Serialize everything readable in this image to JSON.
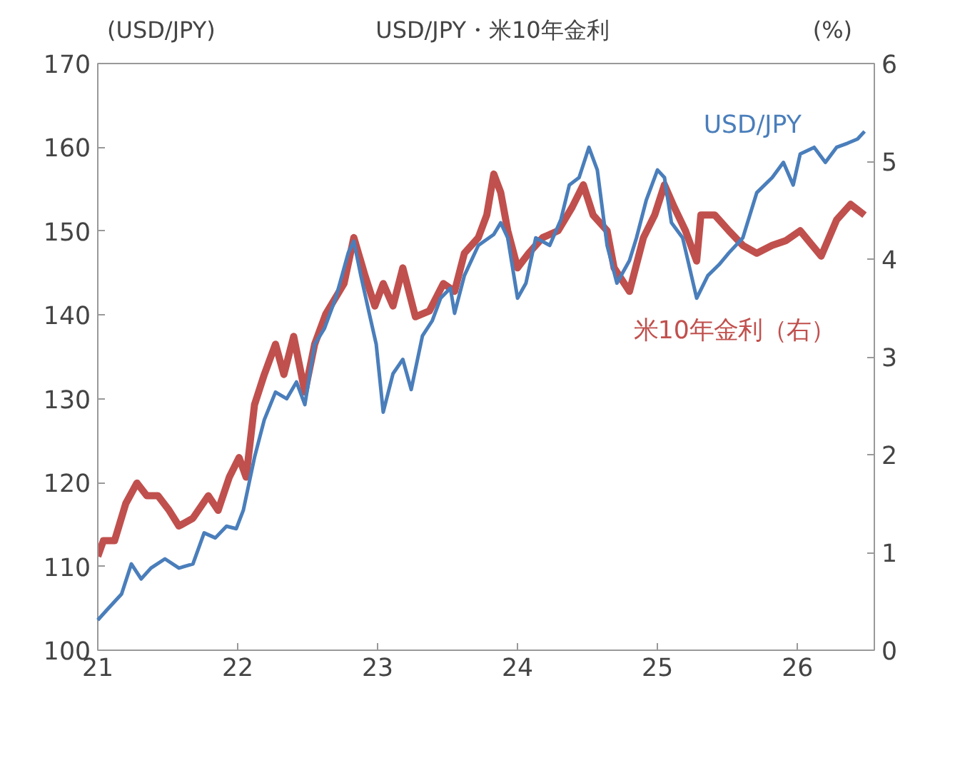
{
  "chart_data": {
    "type": "line",
    "title": "USD/JPY・米10年金利",
    "ylabel": "(USD/JPY)",
    "y2label": "(%)",
    "xlim": [
      21,
      26.55
    ],
    "xticks": [
      21,
      22,
      23,
      24,
      25,
      26
    ],
    "ylim": [
      100,
      170
    ],
    "yticks": [
      100,
      110,
      120,
      130,
      140,
      150,
      160,
      170
    ],
    "y2lim": [
      0,
      6
    ],
    "y2ticks": [
      0,
      1,
      2,
      3,
      4,
      5,
      6
    ],
    "grid": false,
    "legend": false,
    "marker": "none",
    "line_style": "solid",
    "series": [
      {
        "name": "USD/JPY",
        "color": "#4a7ebb",
        "x": [
          21.0,
          21.07,
          21.17,
          21.24,
          21.31,
          21.38,
          21.48,
          21.58,
          21.68,
          21.76,
          21.84,
          21.92,
          21.99,
          22.04,
          22.12,
          22.19,
          22.27,
          22.35,
          22.42,
          22.48,
          22.55,
          22.62,
          22.7,
          22.79,
          22.83,
          22.88,
          22.94,
          22.99,
          23.04,
          23.11,
          23.18,
          23.24,
          23.32,
          23.39,
          23.45,
          23.52,
          23.55,
          23.62,
          23.72,
          23.83,
          23.88,
          23.93,
          24.0,
          24.06,
          24.13,
          24.23,
          24.31,
          24.37,
          24.44,
          24.51,
          24.57,
          24.64,
          24.71,
          24.8,
          24.85,
          24.92,
          25.0,
          25.05,
          25.1,
          25.18,
          25.28,
          25.36,
          25.44,
          25.51,
          25.61,
          25.71,
          25.82,
          25.9,
          25.97,
          26.02,
          26.12,
          26.2,
          26.28,
          26.36,
          26.43,
          26.48
        ],
        "values": [
          103.6,
          104.9,
          106.7,
          110.3,
          108.5,
          109.8,
          110.9,
          109.8,
          110.3,
          114,
          113.4,
          114.8,
          114.5,
          116.7,
          123,
          127.5,
          130.8,
          130,
          132,
          129.3,
          136.5,
          138.4,
          142,
          147.4,
          148.8,
          144.7,
          140.2,
          136.5,
          128.4,
          133,
          134.7,
          131.1,
          137.5,
          139.3,
          142,
          143.2,
          140.2,
          144.7,
          148.3,
          149.6,
          151,
          149.2,
          142,
          143.8,
          149.2,
          148.3,
          151.4,
          155.5,
          156.4,
          160,
          157.3,
          148.3,
          143.8,
          146.5,
          149.2,
          153.7,
          157.3,
          156.4,
          151,
          149.2,
          142,
          144.7,
          146,
          147.4,
          149.2,
          154.6,
          156.4,
          158.2,
          155.5,
          159.2,
          160,
          158.2,
          160,
          160.5,
          161,
          161.9
        ]
      },
      {
        "name": "米10年金利（右）",
        "color": "#c0504d",
        "axis": "y2",
        "x": [
          21.0,
          21.04,
          21.12,
          21.2,
          21.28,
          21.35,
          21.43,
          21.51,
          21.58,
          21.68,
          21.79,
          21.86,
          21.94,
          22.01,
          22.06,
          22.12,
          22.19,
          22.27,
          22.33,
          22.4,
          22.48,
          22.55,
          22.63,
          22.76,
          22.83,
          22.91,
          22.98,
          23.04,
          23.11,
          23.18,
          23.27,
          23.37,
          23.47,
          23.55,
          23.62,
          23.72,
          23.78,
          23.83,
          23.88,
          23.93,
          24.0,
          24.08,
          24.18,
          24.29,
          24.39,
          24.47,
          24.54,
          24.64,
          24.69,
          24.8,
          24.9,
          24.98,
          25.05,
          25.12,
          25.2,
          25.28,
          25.31,
          25.41,
          25.51,
          25.61,
          25.71,
          25.82,
          25.92,
          26.02,
          26.17,
          26.28,
          26.38,
          26.48
        ],
        "values": [
          0.96,
          1.12,
          1.12,
          1.5,
          1.71,
          1.58,
          1.58,
          1.43,
          1.27,
          1.35,
          1.58,
          1.43,
          1.77,
          1.97,
          1.77,
          2.51,
          2.82,
          3.13,
          2.82,
          3.21,
          2.64,
          3.13,
          3.44,
          3.75,
          4.22,
          3.83,
          3.52,
          3.75,
          3.52,
          3.91,
          3.41,
          3.47,
          3.75,
          3.67,
          4.06,
          4.22,
          4.45,
          4.87,
          4.68,
          4.29,
          3.91,
          4.06,
          4.22,
          4.29,
          4.53,
          4.76,
          4.45,
          4.29,
          3.91,
          3.67,
          4.22,
          4.45,
          4.76,
          4.53,
          4.29,
          3.98,
          4.45,
          4.45,
          4.29,
          4.14,
          4.06,
          4.14,
          4.19,
          4.29,
          4.03,
          4.4,
          4.56,
          4.45
        ]
      }
    ]
  }
}
